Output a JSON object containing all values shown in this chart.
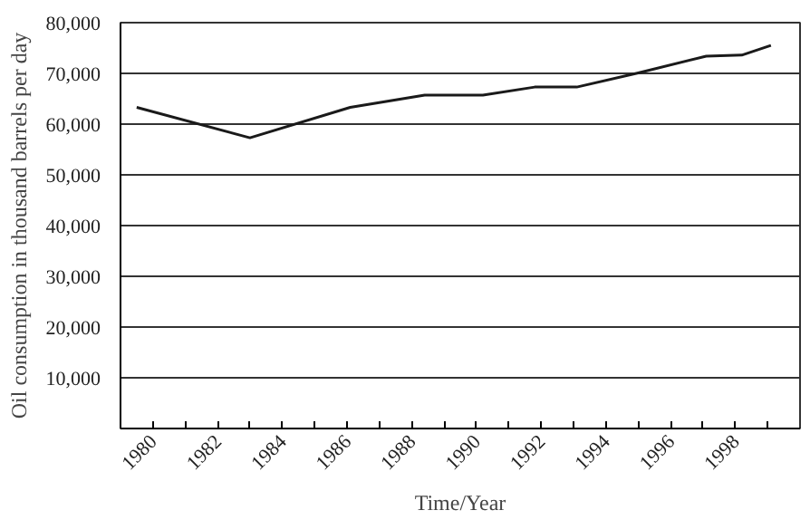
{
  "chart_data": {
    "type": "line",
    "xlabel": "Time/Year",
    "ylabel": "Oil consumption in thousand barrels per day",
    "x": [
      1979.5,
      1983.0,
      1986.1,
      1988.4,
      1990.2,
      1991.8,
      1993.1,
      1995.0,
      1997.1,
      1998.2,
      1999.1
    ],
    "series": [
      {
        "color": "#1a1a1a",
        "values": [
          63300,
          57300,
          63300,
          65700,
          65700,
          67300,
          67300,
          70100,
          73400,
          73600,
          75500
        ]
      }
    ],
    "xlim": [
      1979,
      2000
    ],
    "xticks": [
      1980,
      {
        "value": 1981,
        "label": null
      },
      1982,
      {
        "value": 1983,
        "label": null
      },
      1984,
      {
        "value": 1985,
        "label": null
      },
      1986,
      {
        "value": 1987,
        "label": null
      },
      1988,
      {
        "value": 1989,
        "label": null
      },
      1990,
      {
        "value": 1991,
        "label": null
      },
      1992,
      {
        "value": 1993,
        "label": null
      },
      1994,
      {
        "value": 1995,
        "label": null
      },
      1996,
      {
        "value": 1997,
        "label": null
      },
      1998,
      {
        "value": 1999,
        "label": null
      }
    ],
    "ylim": [
      0,
      80000
    ],
    "yticks": [
      {
        "value": 10000,
        "label": "10,000"
      },
      {
        "value": 20000,
        "label": "20,000"
      },
      {
        "value": 30000,
        "label": "30,000"
      },
      {
        "value": 40000,
        "label": "40,000"
      },
      {
        "value": 50000,
        "label": "50,000"
      },
      {
        "value": 60000,
        "label": "60,000"
      },
      {
        "value": 70000,
        "label": "70,000"
      },
      {
        "value": 80000,
        "label": "80,000"
      }
    ],
    "grid": "y",
    "line_style": "solid"
  }
}
